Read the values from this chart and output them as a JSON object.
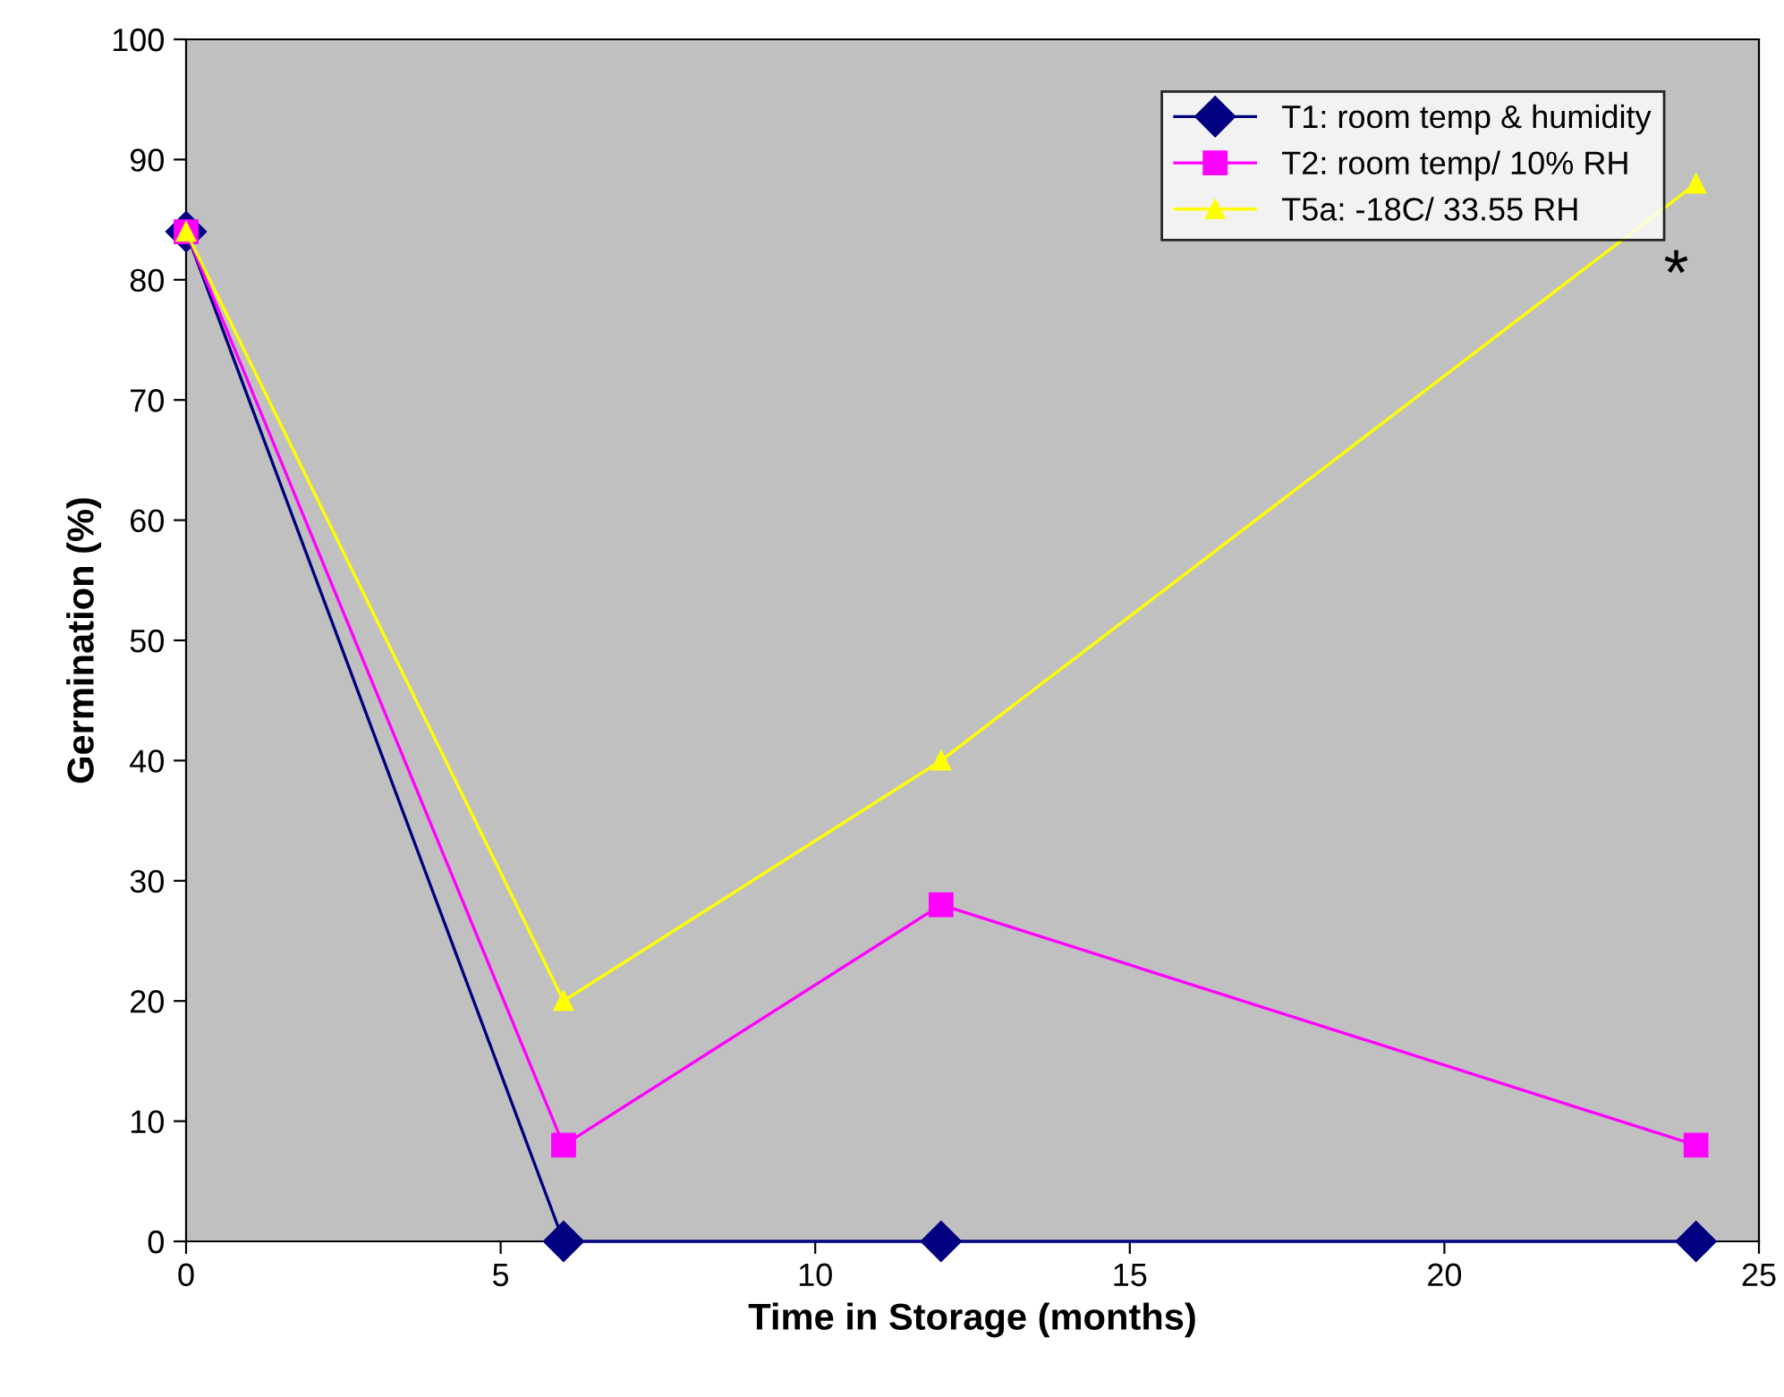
{
  "chart_data": {
    "type": "line",
    "xlabel": "Time in Storage (months)",
    "ylabel": "Germination (%)",
    "x": [
      0,
      6,
      12,
      24
    ],
    "series": [
      {
        "name": "T1: room temp & humidity",
        "color": "#000080",
        "marker": "diamond",
        "values": [
          84,
          0,
          0,
          0
        ]
      },
      {
        "name": "T2: room temp/ 10% RH",
        "color": "#ff00ff",
        "marker": "square",
        "values": [
          84,
          8,
          28,
          8
        ]
      },
      {
        "name": "T5a: -18C/ 33.55 RH",
        "color": "#ffff00",
        "marker": "triangle",
        "values": [
          84,
          20,
          40,
          88
        ]
      }
    ],
    "xlim": [
      0,
      25
    ],
    "xticks": [
      0,
      5,
      10,
      15,
      20,
      25
    ],
    "ylim": [
      0,
      100
    ],
    "yticks": [
      0,
      10,
      20,
      30,
      40,
      50,
      60,
      70,
      80,
      90,
      100
    ],
    "grid": false,
    "legend": "top right",
    "line_style": "solid",
    "annotations": [
      {
        "text": "*",
        "x": 24,
        "y": 88
      }
    ]
  }
}
